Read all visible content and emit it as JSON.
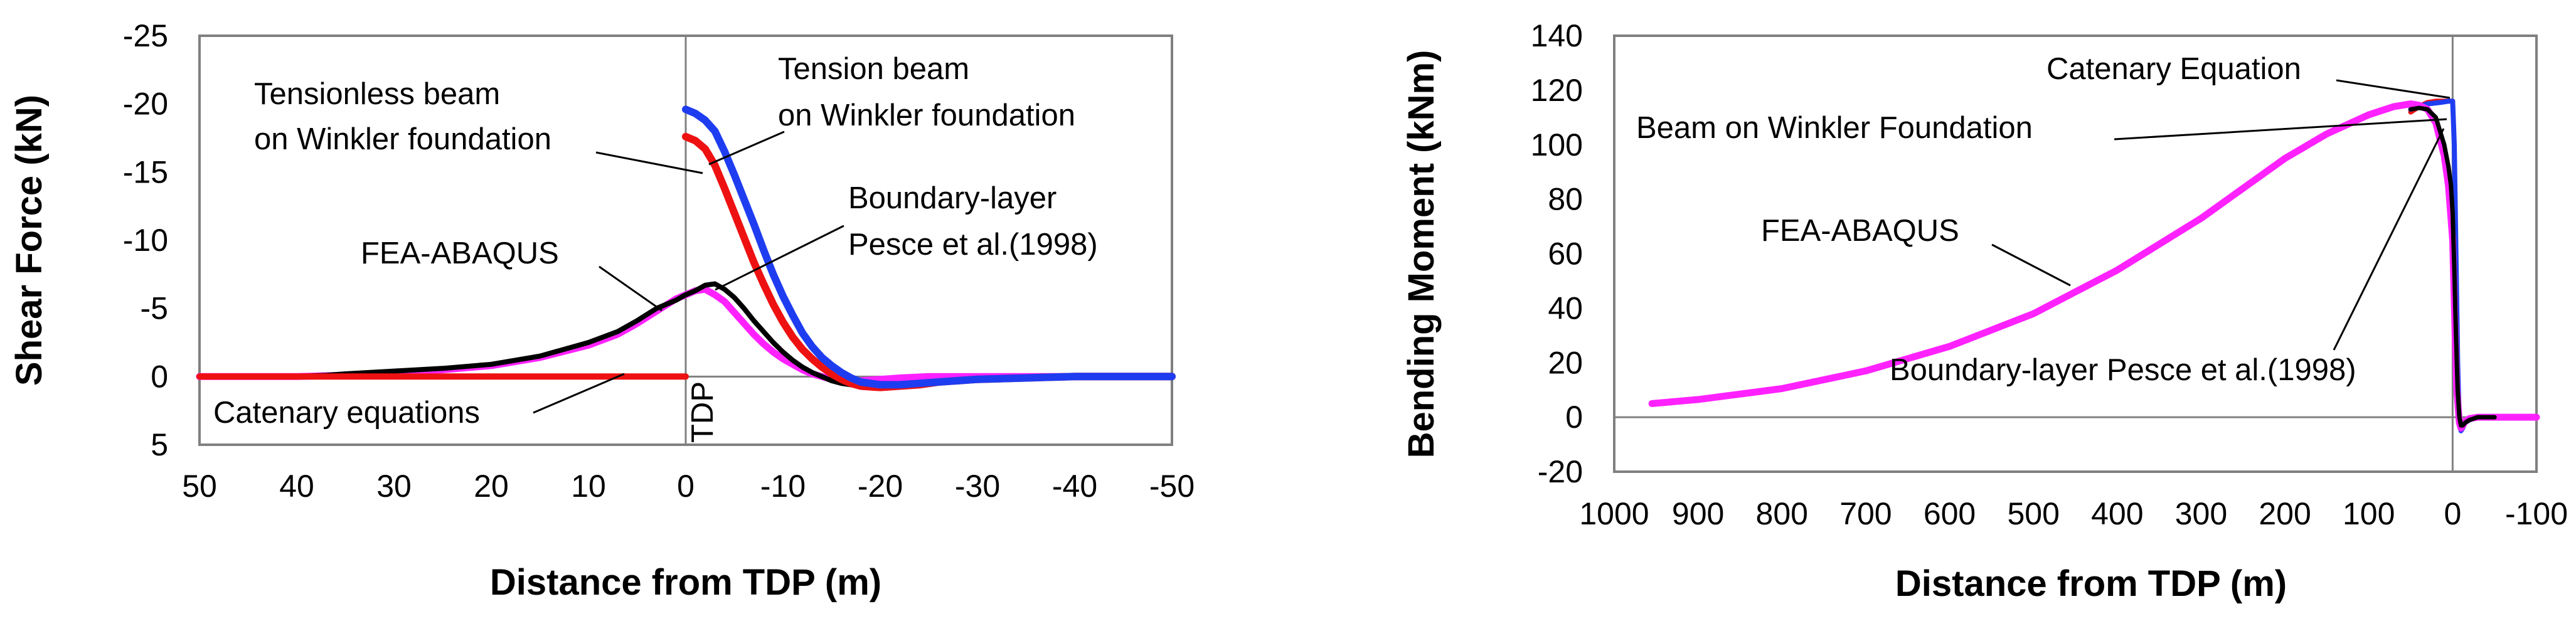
{
  "chart_data": [
    {
      "type": "line",
      "title": "",
      "xlabel": "Distance from TDP (m)",
      "ylabel": "Shear Force (kN)",
      "xlim": [
        50,
        -50
      ],
      "ylim": [
        5,
        -25
      ],
      "y_inverted": true,
      "x_inverted": true,
      "xticks": [
        "50",
        "40",
        "30",
        "20",
        "10",
        "0",
        "-10",
        "-20",
        "-30",
        "-40",
        "-50"
      ],
      "yticks": [
        "-25",
        "-20",
        "-15",
        "-10",
        "-5",
        "0",
        "5"
      ],
      "tdp_label": "TDP",
      "colors": {
        "tension": "#1f3df0",
        "tensionless": "#ee1111",
        "fea": "#ff22ff",
        "boundary": "#000000",
        "catenary": "#ee1111"
      },
      "series": [
        {
          "name": "Tension beam on Winkler foundation",
          "x": [
            0,
            -1,
            -2,
            -3,
            -4,
            -5,
            -6,
            -7,
            -8,
            -9,
            -10,
            -11,
            -12,
            -13,
            -14,
            -15,
            -16,
            -17,
            -18,
            -20,
            -22,
            -24,
            -26,
            -30,
            -35,
            -40,
            -50
          ],
          "y": [
            -19.6,
            -19.3,
            -18.8,
            -18.0,
            -16.5,
            -14.8,
            -13.0,
            -11.2,
            -9.3,
            -7.5,
            -5.9,
            -4.5,
            -3.2,
            -2.2,
            -1.4,
            -0.8,
            -0.3,
            0.1,
            0.4,
            0.6,
            0.6,
            0.5,
            0.4,
            0.2,
            0.1,
            0.0,
            0.0
          ]
        },
        {
          "name": "Tensionless beam on Winkler foundation",
          "x": [
            0,
            -1,
            -2,
            -3,
            -4,
            -5,
            -6,
            -7,
            -8,
            -9,
            -10,
            -11,
            -12,
            -13,
            -14,
            -15,
            -16,
            -17,
            -18,
            -20,
            -22,
            -24,
            -26,
            -30,
            -35,
            -40,
            -50
          ],
          "y": [
            -17.6,
            -17.3,
            -16.7,
            -15.5,
            -13.8,
            -12.0,
            -10.2,
            -8.4,
            -6.8,
            -5.3,
            -4.0,
            -2.9,
            -2.0,
            -1.3,
            -0.7,
            -0.2,
            0.2,
            0.5,
            0.7,
            0.8,
            0.7,
            0.6,
            0.4,
            0.2,
            0.1,
            0.0,
            0.0
          ]
        },
        {
          "name": "FEA-ABAQUS",
          "x": [
            50,
            40,
            35,
            30,
            25,
            20,
            15,
            10,
            7,
            5,
            3,
            1,
            0,
            -1,
            -2,
            -3,
            -4,
            -5,
            -6,
            -7,
            -8,
            -9,
            -10,
            -11,
            -12,
            -13,
            -14,
            -15,
            -16,
            -17,
            -18,
            -20,
            -22,
            -25,
            -30,
            -35,
            -40,
            -50
          ],
          "y": [
            0.0,
            0.0,
            -0.1,
            -0.3,
            -0.5,
            -0.8,
            -1.4,
            -2.3,
            -3.1,
            -3.9,
            -4.8,
            -5.7,
            -6.0,
            -6.3,
            -6.4,
            -6.0,
            -5.5,
            -4.7,
            -3.9,
            -3.1,
            -2.4,
            -1.8,
            -1.3,
            -0.9,
            -0.5,
            -0.2,
            0.0,
            0.2,
            0.3,
            0.4,
            0.3,
            0.2,
            0.1,
            0.0,
            0.0,
            0.0,
            0.0,
            0.0
          ]
        },
        {
          "name": "Boundary-layer Pesce et al.(1998)",
          "x": [
            50,
            40,
            37,
            35,
            30,
            25,
            20,
            15,
            10,
            7,
            5,
            3,
            1,
            0,
            -1,
            -2,
            -3,
            -4,
            -5,
            -6,
            -7,
            -8,
            -9,
            -10,
            -11,
            -12,
            -13,
            -14,
            -15,
            -16,
            -17,
            -18,
            -20,
            -22,
            -25,
            -30,
            -35,
            -40,
            -50
          ],
          "y": [
            0.0,
            0.0,
            -0.1,
            -0.2,
            -0.4,
            -0.6,
            -0.9,
            -1.5,
            -2.5,
            -3.3,
            -4.1,
            -5.0,
            -5.6,
            -6.0,
            -6.3,
            -6.7,
            -6.8,
            -6.4,
            -5.8,
            -5.0,
            -4.1,
            -3.3,
            -2.5,
            -1.8,
            -1.2,
            -0.7,
            -0.3,
            0.0,
            0.3,
            0.5,
            0.6,
            0.7,
            0.7,
            0.6,
            0.4,
            0.2,
            0.1,
            0.0,
            0.0
          ]
        },
        {
          "name": "Catenary equations",
          "x": [
            50,
            40,
            30,
            20,
            10,
            0
          ],
          "y": [
            0,
            0,
            0,
            0,
            0,
            0
          ]
        }
      ],
      "annotations": [
        {
          "lines": [
            "Tensionless beam",
            "on Winkler foundation"
          ]
        },
        {
          "lines": [
            "Tension beam",
            "on Winkler foundation"
          ]
        },
        {
          "lines": [
            "Boundary-layer",
            "Pesce et al.(1998)"
          ]
        },
        {
          "lines": [
            "FEA-ABAQUS"
          ]
        },
        {
          "lines": [
            "Catenary equations"
          ]
        }
      ]
    },
    {
      "type": "line",
      "title": "",
      "xlabel": "Distance from TDP (m)",
      "ylabel": "Bending Moment (kNm)",
      "xlim": [
        1000,
        -100
      ],
      "ylim": [
        -20,
        140
      ],
      "x_inverted": true,
      "xticks": [
        "1000",
        "900",
        "800",
        "700",
        "600",
        "500",
        "400",
        "300",
        "200",
        "100",
        "0",
        "-100"
      ],
      "yticks": [
        "-20",
        "0",
        "20",
        "40",
        "60",
        "80",
        "100",
        "120",
        "140"
      ],
      "colors": {
        "catenary": "#ee1111",
        "winkler": "#1f3df0",
        "fea": "#ff22ff",
        "boundary": "#000000"
      },
      "series": [
        {
          "name": "Catenary Equation",
          "x": [
            50,
            40,
            30,
            20,
            10,
            5,
            2,
            0
          ],
          "y": [
            112,
            114,
            115.5,
            116,
            116,
            116,
            116,
            116
          ]
        },
        {
          "name": "Beam on Winkler Foundation",
          "x": [
            50,
            30,
            15,
            5,
            0,
            -2,
            -4,
            -6,
            -8,
            -10,
            -12,
            -15,
            -20,
            -30,
            -50
          ],
          "y": [
            113,
            115,
            115.5,
            116,
            116,
            100,
            60,
            20,
            -2,
            -5,
            -4,
            -2,
            -1,
            0,
            0
          ]
        },
        {
          "name": "FEA-ABAQUS",
          "x": [
            955,
            900,
            800,
            700,
            600,
            500,
            400,
            300,
            200,
            150,
            100,
            70,
            50,
            40,
            30,
            20,
            10,
            5,
            0,
            -3,
            -5,
            -8,
            -10,
            -12,
            -15,
            -20,
            -30,
            -50,
            -100
          ],
          "y": [
            5,
            6.5,
            10.5,
            17,
            26,
            38,
            54,
            73,
            95,
            104,
            111,
            114,
            115,
            114.5,
            113,
            108,
            96,
            85,
            65,
            30,
            10,
            -2,
            -4,
            -3,
            -1.5,
            -0.5,
            0,
            0,
            0
          ]
        },
        {
          "name": "Boundary-layer Pesce et al.(1998)",
          "x": [
            50,
            40,
            30,
            20,
            10,
            5,
            2,
            0,
            -2,
            -4,
            -6,
            -8,
            -10,
            -12,
            -15,
            -20,
            -30,
            -50
          ],
          "y": [
            113,
            113.5,
            113,
            110,
            100,
            92,
            85,
            75,
            55,
            30,
            10,
            0,
            -3,
            -3,
            -2,
            -1,
            0,
            0
          ]
        }
      ],
      "annotations": [
        {
          "lines": [
            "Catenary Equation"
          ]
        },
        {
          "lines": [
            "Beam on Winkler Foundation"
          ]
        },
        {
          "lines": [
            "FEA-ABAQUS"
          ]
        },
        {
          "lines": [
            "Boundary-layer Pesce et al.(1998)"
          ]
        }
      ]
    }
  ]
}
